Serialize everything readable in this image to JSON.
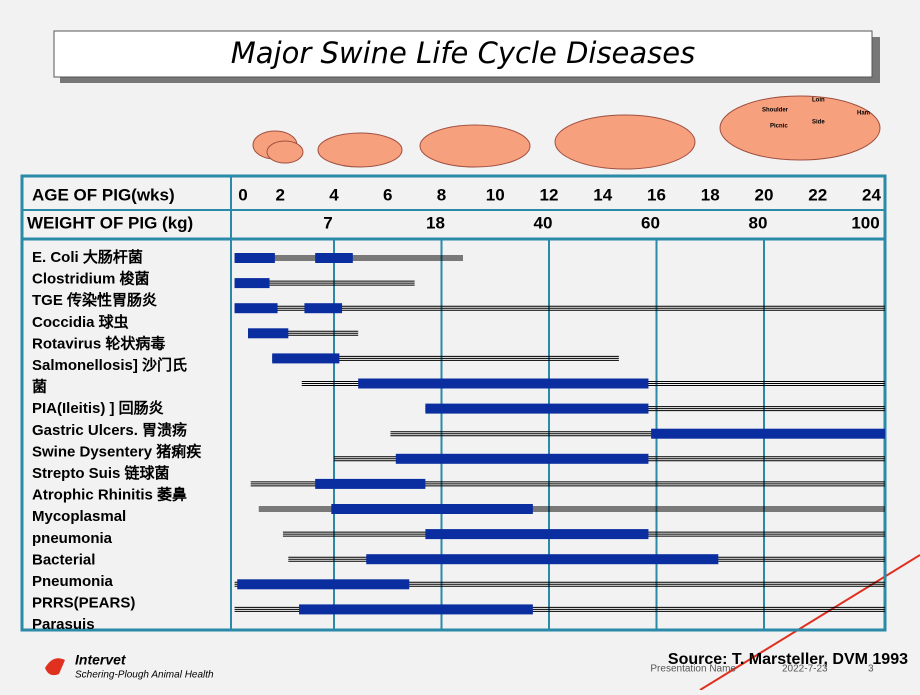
{
  "header": {
    "title": "Major Swine Life Cycle Diseases",
    "cuts": [
      "Shoulder",
      "Loin",
      "Ham",
      "Picnic",
      "Side"
    ]
  },
  "chart_data": {
    "type": "range",
    "x_label": "AGE OF PIG(wks)",
    "weight_label": "WEIGHT OF PIG (kg)",
    "xlim": [
      0,
      24
    ],
    "xticks": [
      0,
      2,
      4,
      6,
      8,
      10,
      12,
      14,
      16,
      18,
      20,
      22,
      24
    ],
    "weights": [
      7,
      18,
      40,
      60,
      80,
      100
    ],
    "weight_weeks": [
      4,
      8,
      12,
      16,
      20,
      24
    ],
    "grid": true,
    "line_color": "#000000",
    "bar_color": "#0a2da0",
    "row_labels": [
      "E. Coli  大肠杆菌",
      "Clostridium 梭菌",
      "TGE 传染性胃肠炎",
      "Coccidia 球虫",
      "Rotavirus 轮状病毒",
      "Salmonellosis] 沙门氏",
      "菌",
      "PIA(Ileitis) ] 回肠炎",
      "Gastric Ulcers. 胃溃疡",
      "Swine Dysentery 猪痢疾",
      "Strepto Suis 链球菌",
      "Atrophic Rhinitis 萎鼻",
      "Mycoplasmal",
      "pneumonia",
      "Bacterial",
      "Pneumonia",
      "PRRS(PEARS)",
      "Parasuis"
    ],
    "rows": [
      {
        "line": [
          0.3,
          8.8
        ],
        "bars": [
          [
            0.3,
            1.8
          ],
          [
            3.3,
            4.7
          ]
        ]
      },
      {
        "line": [
          0.3,
          7.0
        ],
        "bars": [
          [
            0.3,
            1.6
          ]
        ]
      },
      {
        "line": [
          0.3,
          24.5
        ],
        "bars": [
          [
            0.3,
            1.9
          ],
          [
            2.9,
            4.3
          ]
        ]
      },
      {
        "line": [
          0.8,
          4.9
        ],
        "bars": [
          [
            0.8,
            2.3
          ]
        ]
      },
      {
        "line": [
          1.7,
          14.6
        ],
        "bars": [
          [
            1.7,
            4.2
          ]
        ]
      },
      {
        "line": [
          2.8,
          24.5
        ],
        "bars": [
          [
            4.9,
            15.7
          ]
        ]
      },
      {
        "line": [
          7.4,
          24.5
        ],
        "bars": [
          [
            7.4,
            15.7
          ]
        ]
      },
      {
        "line": [
          6.1,
          24.5
        ],
        "bars": [
          [
            15.8,
            24.5
          ]
        ]
      },
      {
        "line": [
          4.0,
          24.5
        ],
        "bars": [
          [
            6.3,
            15.7
          ]
        ]
      },
      {
        "line": [
          0.9,
          24.5
        ],
        "bars": [
          [
            3.3,
            7.4
          ]
        ]
      },
      {
        "line": [
          1.2,
          24.5
        ],
        "bars": [
          [
            3.9,
            11.4
          ]
        ]
      },
      {
        "line": [
          2.1,
          24.5
        ],
        "bars": [
          [
            7.4,
            15.7
          ]
        ]
      },
      {
        "line": [
          2.3,
          24.5
        ],
        "bars": [
          [
            5.2,
            18.3
          ]
        ]
      },
      {
        "line": [
          0.3,
          24.5
        ],
        "bars": [
          [
            0.4,
            6.8
          ]
        ]
      },
      {
        "line": [
          0.3,
          24.5
        ],
        "bars": [
          [
            2.7,
            11.4
          ]
        ]
      }
    ]
  },
  "footer": {
    "brand": "Intervet",
    "brand_sub": "Schering-Plough Animal Health",
    "source": "Source:  T. Marsteller, DVM  1993",
    "presentation": "Presentation Name",
    "date": "2022-7-23",
    "page": "3"
  }
}
